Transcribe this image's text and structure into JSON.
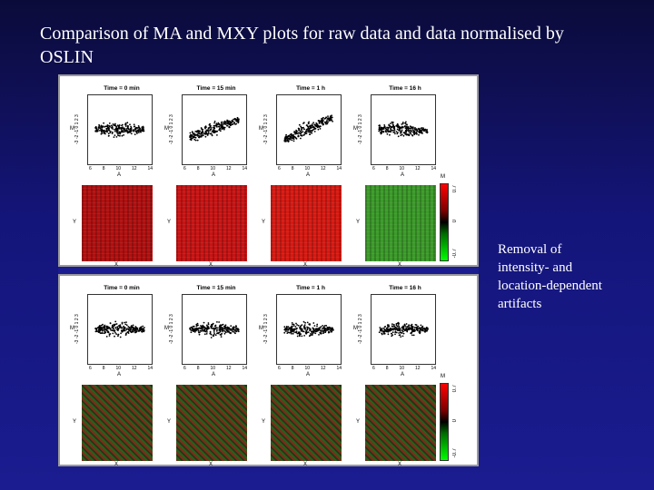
{
  "slide": {
    "title": "Comparison of MA and MXY plots for raw data and data normalised by OSLIN",
    "side_note_lines": [
      "Removal of",
      "intensity- and",
      "location-dependent",
      "artifacts"
    ]
  },
  "figure": {
    "ma_titles": [
      "Time = 0 min",
      "Time = 15 min",
      "Time = 1 h",
      "Time = 16 h"
    ],
    "ma_y_label": "M",
    "ma_x_label": "A",
    "ma_y_ticks": "-3 -2 -1 0 1 2 3",
    "ma_x_ticks": [
      "6",
      "8",
      "10",
      "12",
      "14"
    ],
    "img_y_label": "Y",
    "img_x_label": "X",
    "colorbar": {
      "label": "M",
      "ticks": [
        "0.7",
        "0",
        "-0.7"
      ]
    },
    "panels": [
      "raw",
      "normalised"
    ],
    "colors": {
      "raw_tiles": [
        "#b11010",
        "#c81414",
        "#d61a12",
        "#3c9a2a"
      ],
      "norm_tile": "#3a4a20",
      "points": "#000000"
    }
  }
}
